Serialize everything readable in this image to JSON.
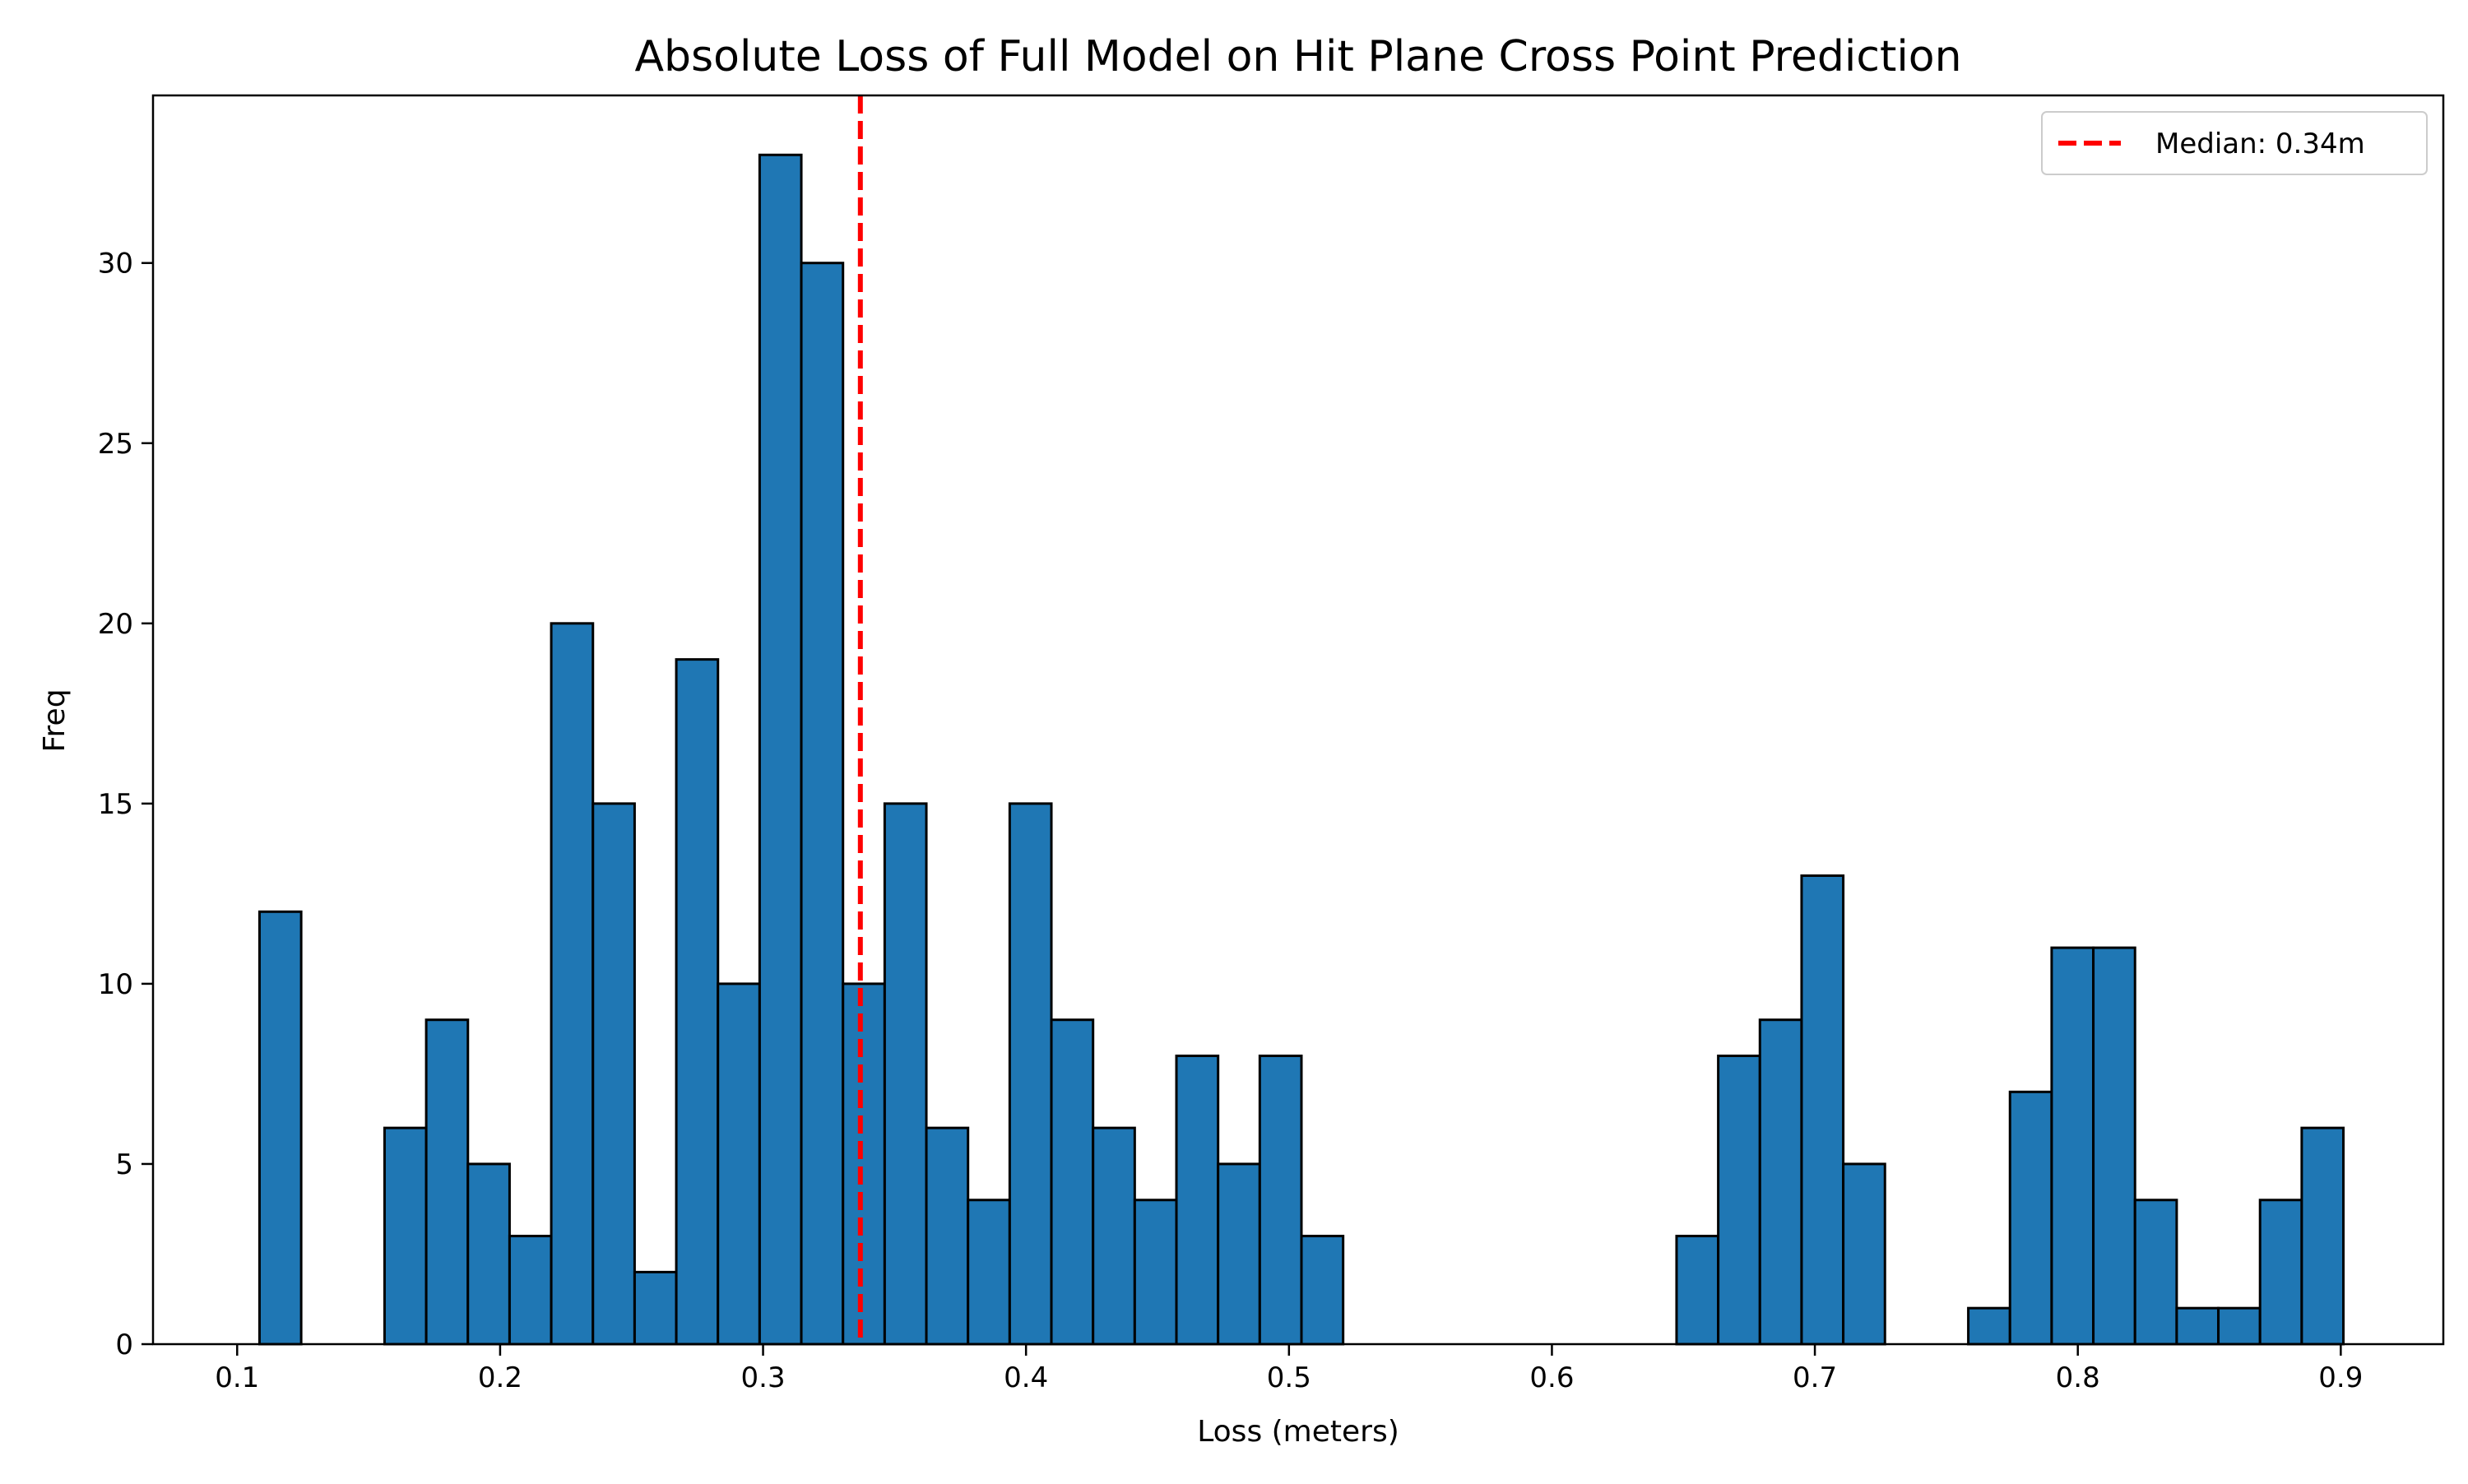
{
  "chart_data": {
    "type": "bar",
    "title": "Absolute Loss of Full Model on Hit Plane Cross Point Prediction",
    "xlabel": "Loss (meters)",
    "ylabel": "Freq",
    "xlim": [
      0.068,
      0.939
    ],
    "ylim": [
      0,
      34.65
    ],
    "grid": false,
    "legend_position": "top-right",
    "bar_color": "#1f77b4",
    "bar_edge_color": "#000000",
    "bins": {
      "start": 0.1085,
      "width": 0.01585,
      "counts": [
        12,
        0,
        0,
        6,
        9,
        5,
        3,
        20,
        15,
        2,
        19,
        10,
        33,
        30,
        10,
        15,
        6,
        4,
        15,
        9,
        6,
        4,
        8,
        5,
        8,
        3,
        0,
        0,
        0,
        0,
        0,
        0,
        0,
        0,
        3,
        8,
        9,
        13,
        5,
        0,
        0,
        1,
        7,
        11,
        11,
        4,
        1,
        1,
        4,
        6
      ]
    },
    "x_ticks": [
      0.1,
      0.2,
      0.3,
      0.4,
      0.5,
      0.6,
      0.7,
      0.8,
      0.9
    ],
    "x_tick_labels": [
      "0.1",
      "0.2",
      "0.3",
      "0.4",
      "0.5",
      "0.6",
      "0.7",
      "0.8",
      "0.9"
    ],
    "y_ticks": [
      0,
      5,
      10,
      15,
      20,
      25,
      30
    ],
    "y_tick_labels": [
      "0",
      "5",
      "10",
      "15",
      "20",
      "25",
      "30"
    ],
    "median": {
      "value": 0.337,
      "label": "Median: 0.34m",
      "color": "#ff0000",
      "style": "dashed"
    }
  }
}
